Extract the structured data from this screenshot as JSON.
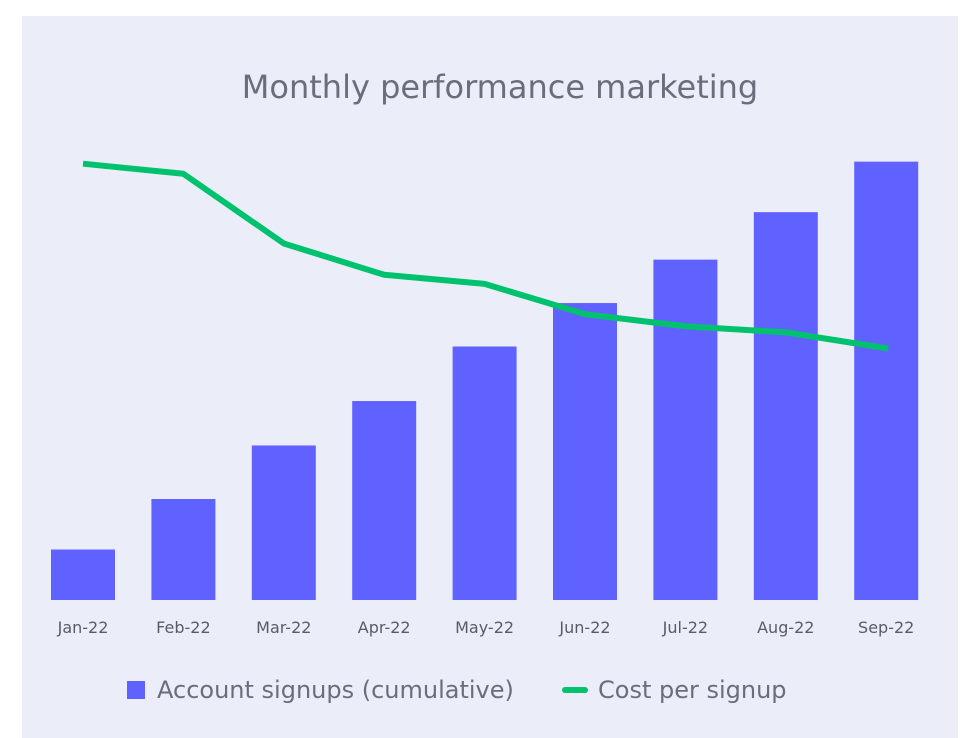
{
  "chart_data": {
    "type": "bar",
    "title": "Monthly performance marketing",
    "categories": [
      "Jan-22",
      "Feb-22",
      "Mar-22",
      "Apr-22",
      "May-22",
      "Jun-22",
      "Jul-22",
      "Aug-22",
      "Sep-22"
    ],
    "series": [
      {
        "name": "Account signups (cumulative)",
        "type": "bar",
        "color": "#6062ff",
        "values": [
          5.0,
          10.0,
          15.3,
          19.7,
          25.1,
          29.4,
          33.7,
          38.4,
          43.4
        ]
      },
      {
        "name": "Cost per signup",
        "type": "line",
        "color": "#00c26e",
        "values": [
          43.2,
          42.2,
          35.3,
          32.2,
          31.3,
          28.3,
          27.1,
          26.5,
          24.9
        ]
      }
    ],
    "ylim": [
      0,
      50
    ],
    "grid": false,
    "legend": "bottom"
  },
  "colors": {
    "background": "#ebeef8",
    "bar": "#6062ff",
    "line": "#00c26e"
  }
}
